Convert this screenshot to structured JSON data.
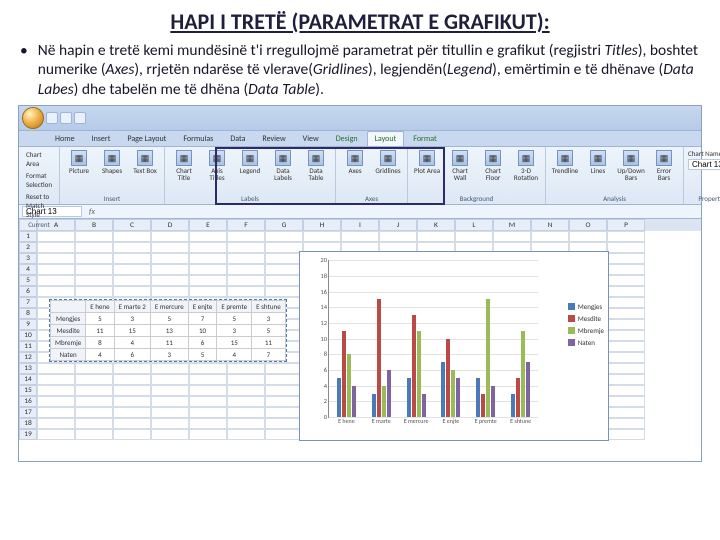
{
  "title": "HAPI I TRETË (PARAMETRAT E GRAFIKUT):",
  "bullet_pre": "Në hapin e tretë kemi mundësinë t'i rregullojmë parametrat për titullin  e grafikut (regjistri ",
  "b_titles": "Titles",
  "b_mid1": "), boshtet numerike (",
  "b_axes": "Axes",
  "b_mid2": "), rrjetën ndarëse të vlerave(",
  "b_grid": "Gridlines",
  "b_mid3": "), legjendën(",
  "b_legend": "Legend",
  "b_mid4": "), emërtimin e të dhënave (",
  "b_labels": "Data Labes",
  "b_mid5": ") dhe tabelën me të dhëna (",
  "b_table": "Data Table",
  "b_end": ").",
  "tabs": [
    "Home",
    "Insert",
    "Page Layout",
    "Formulas",
    "Data",
    "Review",
    "View",
    "Design",
    "Layout",
    "Format"
  ],
  "active_tab": 8,
  "groups": {
    "sel": {
      "items": [
        "Chart Area",
        "Format Selection",
        "Reset to Match Style"
      ],
      "label": "Current Selection"
    },
    "insert": {
      "btns": [
        "Picture",
        "Shapes",
        "Text Box"
      ],
      "label": "Insert"
    },
    "labels": {
      "btns": [
        "Chart Title",
        "Axis Titles",
        "Legend",
        "Data Labels",
        "Data Table"
      ],
      "label": "Labels"
    },
    "axes": {
      "btns": [
        "Axes",
        "Gridlines"
      ],
      "label": "Axes"
    },
    "bg": {
      "btns": [
        "Plot Area",
        "Chart Wall",
        "Chart Floor",
        "3-D Rotation"
      ],
      "label": "Background"
    },
    "analysis": {
      "btns": [
        "Trendline",
        "Lines",
        "Up/Down Bars",
        "Error Bars"
      ],
      "label": "Analysis"
    },
    "props": {
      "title": "Chart Name:",
      "value": "Chart 13",
      "label": "Properties"
    }
  },
  "namebox": "Chart 13",
  "cols": [
    "A",
    "B",
    "C",
    "D",
    "E",
    "F",
    "G",
    "H",
    "I",
    "J",
    "K",
    "L",
    "M",
    "N",
    "O",
    "P"
  ],
  "numrows": 19,
  "datatable": {
    "headers": [
      "",
      "E hene",
      "E marte 2",
      "E mercure",
      "E enjte",
      "E premte",
      "E shtune"
    ],
    "rows": [
      [
        "Mengjes",
        "5",
        "3",
        "5",
        "7",
        "5",
        "3"
      ],
      [
        "Mesdite",
        "11",
        "15",
        "13",
        "10",
        "3",
        "5"
      ],
      [
        "Mbremje",
        "8",
        "4",
        "11",
        "6",
        "15",
        "11"
      ],
      [
        "Naten",
        "4",
        "6",
        "3",
        "5",
        "4",
        "7"
      ]
    ]
  },
  "chart": {
    "ymax": 20,
    "ytick": 2,
    "categories": [
      "E hene",
      "E marte",
      "E mercure",
      "E enjte",
      "E premte",
      "E shtune"
    ],
    "series": [
      {
        "name": "Mengjes",
        "color": "#4a7ab8",
        "vals": [
          5,
          3,
          5,
          7,
          5,
          3
        ]
      },
      {
        "name": "Mesdite",
        "color": "#b94a48",
        "vals": [
          11,
          15,
          13,
          10,
          3,
          5
        ]
      },
      {
        "name": "Mbremje",
        "color": "#9bbb59",
        "vals": [
          8,
          4,
          11,
          6,
          15,
          11
        ]
      },
      {
        "name": "Naten",
        "color": "#8064a2",
        "vals": [
          4,
          6,
          3,
          5,
          4,
          7
        ]
      }
    ]
  }
}
